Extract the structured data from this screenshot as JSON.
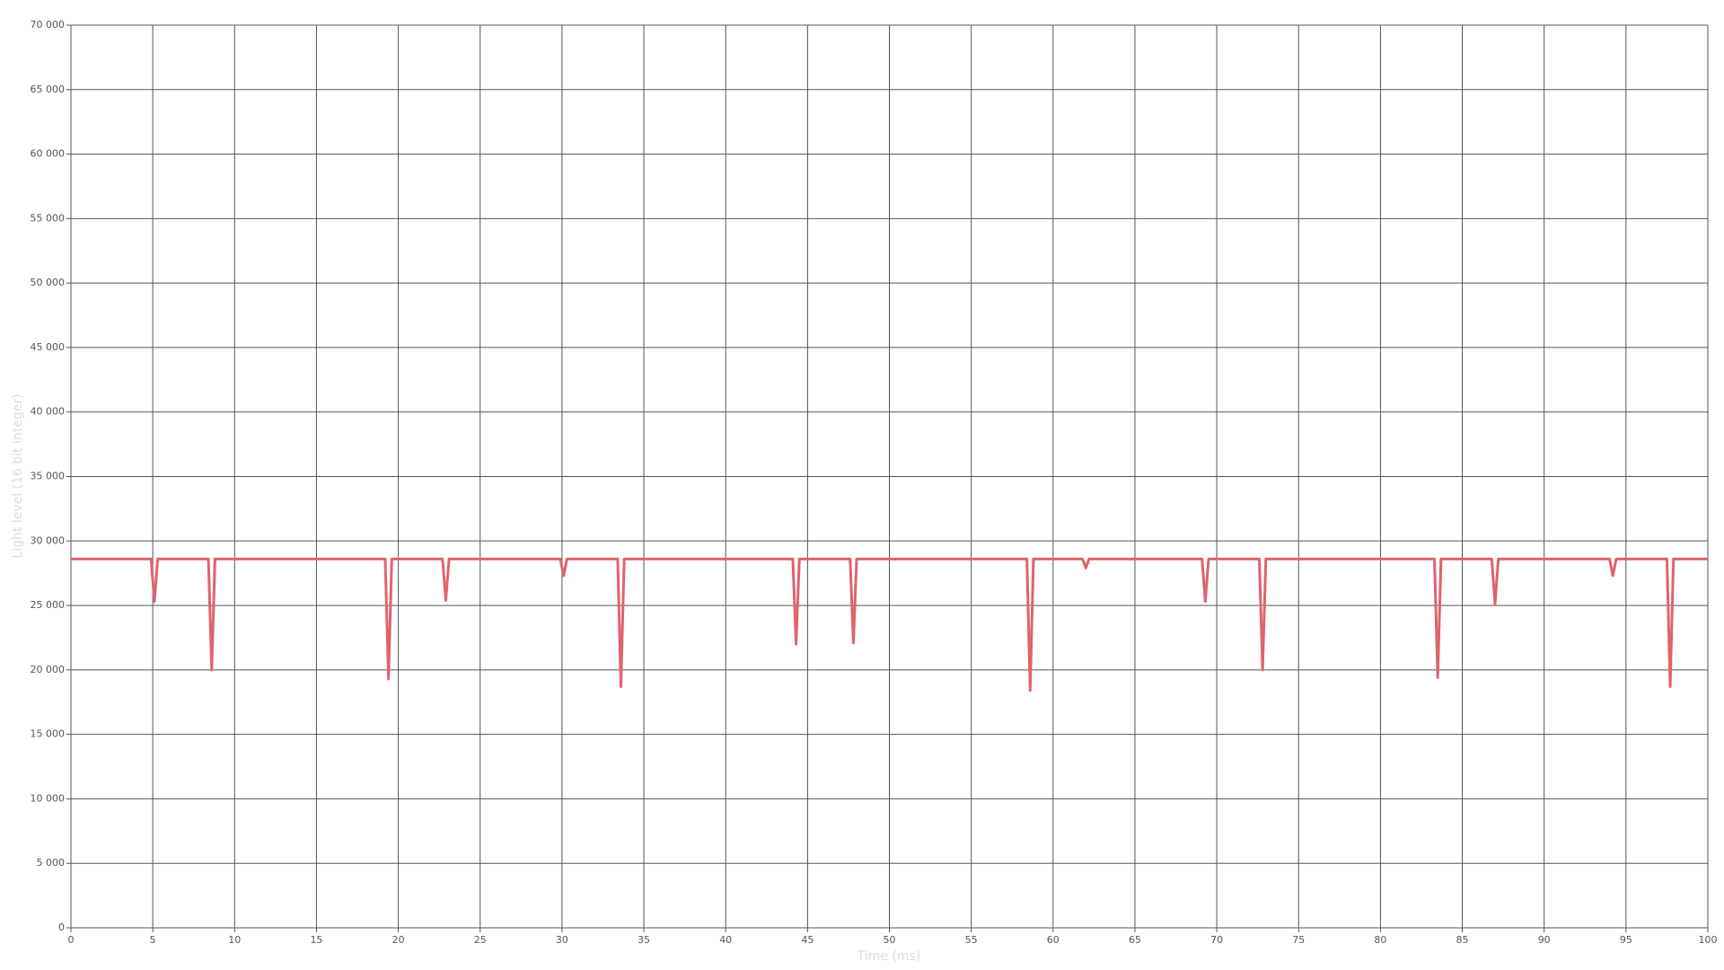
{
  "chart_data": {
    "type": "line",
    "x_label": "Time (ms)",
    "y_label": "Light level (16 bit integer)",
    "x": [
      0,
      4.9,
      5.1,
      5.3,
      8.4,
      8.6,
      8.8,
      19.2,
      19.4,
      19.6,
      22.7,
      22.9,
      23.1,
      29.9,
      30.1,
      30.3,
      33.4,
      33.6,
      33.8,
      44.1,
      44.3,
      44.5,
      47.6,
      47.8,
      48.0,
      58.4,
      58.6,
      58.8,
      61.8,
      62.0,
      62.2,
      69.1,
      69.3,
      69.5,
      72.6,
      72.8,
      73.0,
      83.3,
      83.5,
      83.7,
      86.8,
      87.0,
      87.2,
      94.0,
      94.2,
      94.4,
      97.5,
      97.7,
      97.9,
      100
    ],
    "series": [
      {
        "color": "#e0636f",
        "values": [
          28600,
          28600,
          25300,
          28600,
          28600,
          20000,
          28600,
          28600,
          19300,
          28600,
          28600,
          25400,
          28600,
          28600,
          27300,
          28600,
          28600,
          18700,
          28600,
          28600,
          22000,
          28600,
          28600,
          22100,
          28600,
          28600,
          18400,
          28600,
          28600,
          27900,
          28600,
          28600,
          25300,
          28600,
          28600,
          20000,
          28600,
          28600,
          19400,
          28600,
          28600,
          25100,
          28600,
          28600,
          27300,
          28600,
          28600,
          18700,
          28600,
          28600
        ]
      }
    ],
    "xlim": [
      0,
      100
    ],
    "xticks": [
      0,
      5,
      10,
      15,
      20,
      25,
      30,
      35,
      40,
      45,
      50,
      55,
      60,
      65,
      70,
      75,
      80,
      85,
      90,
      95,
      100
    ],
    "ylim": [
      0,
      70000
    ],
    "yticks": [
      0,
      {
        "value": 5000,
        "label": "5 000"
      },
      {
        "value": 10000,
        "label": "10 000"
      },
      {
        "value": 15000,
        "label": "15 000"
      },
      {
        "value": 20000,
        "label": "20 000"
      },
      {
        "value": 25000,
        "label": "25 000"
      },
      {
        "value": 30000,
        "label": "30 000"
      },
      {
        "value": 35000,
        "label": "35 000"
      },
      {
        "value": 40000,
        "label": "40 000"
      },
      {
        "value": 45000,
        "label": "45 000"
      },
      {
        "value": 50000,
        "label": "50 000"
      },
      {
        "value": 55000,
        "label": "55 000"
      },
      {
        "value": 60000,
        "label": "60 000"
      },
      {
        "value": 65000,
        "label": "65 000"
      },
      {
        "value": 70000,
        "label": "70 000"
      }
    ],
    "grid": true
  }
}
